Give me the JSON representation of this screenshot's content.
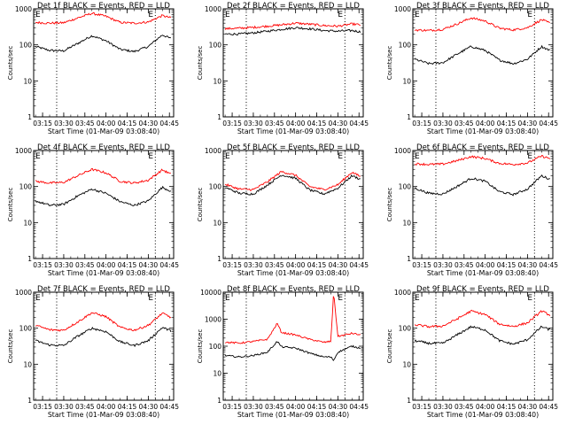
{
  "colors": {
    "events": "#000000",
    "lld": "#ff0000",
    "axis": "#000000"
  },
  "ylabel": "Counts/sec",
  "xlabel": "Start Time (01-Mar-09 03:08:40)",
  "x_ticks": [
    "03:15",
    "03:30",
    "03:45",
    "04:00",
    "04:15",
    "04:30",
    "04:45"
  ],
  "chart_data": [
    {
      "type": "line",
      "title": "Det 1f BLACK = Events, RED = LLD",
      "x_range": [
        "03:08:40",
        "04:48:00"
      ],
      "ylim": [
        1,
        1000
      ],
      "yscale": "log",
      "y_ticks": [
        "1",
        "10",
        "100",
        "1000"
      ],
      "marker": "E",
      "reference_lines": [
        "03:25",
        "04:35"
      ],
      "x": [
        "03:10",
        "03:20",
        "03:30",
        "03:40",
        "03:50",
        "04:00",
        "04:10",
        "04:20",
        "04:30",
        "04:40",
        "04:46"
      ],
      "series": [
        {
          "name": "Events",
          "values": [
            90,
            70,
            68,
            110,
            180,
            130,
            75,
            65,
            90,
            190,
            150
          ]
        },
        {
          "name": "LLD",
          "values": [
            420,
            400,
            410,
            560,
            750,
            620,
            420,
            400,
            430,
            650,
            560
          ]
        }
      ]
    },
    {
      "type": "line",
      "title": "Det 2f BLACK = Events, RED = LLD",
      "x_range": [
        "03:08:40",
        "04:48:00"
      ],
      "ylim": [
        1,
        1000
      ],
      "yscale": "log",
      "y_ticks": [
        "1",
        "10",
        "100",
        "1000"
      ],
      "marker": "E",
      "reference_lines": [
        "03:25",
        "04:35"
      ],
      "x": [
        "03:10",
        "03:20",
        "03:30",
        "03:40",
        "03:50",
        "04:00",
        "04:10",
        "04:20",
        "04:30",
        "04:40",
        "04:46"
      ],
      "series": [
        {
          "name": "Events",
          "values": [
            200,
            200,
            215,
            240,
            270,
            300,
            280,
            250,
            240,
            250,
            230
          ]
        },
        {
          "name": "LLD",
          "values": [
            280,
            290,
            305,
            330,
            360,
            400,
            375,
            345,
            330,
            380,
            360
          ]
        }
      ]
    },
    {
      "type": "line",
      "title": "Det 3f BLACK = Events, RED = LLD",
      "x_range": [
        "03:08:40",
        "04:48:00"
      ],
      "ylim": [
        1,
        1000
      ],
      "yscale": "log",
      "y_ticks": [
        "1",
        "10",
        "100",
        "1000"
      ],
      "marker": "E",
      "reference_lines": [
        "03:25",
        "04:35"
      ],
      "x": [
        "03:10",
        "03:20",
        "03:30",
        "03:40",
        "03:50",
        "04:00",
        "04:10",
        "04:20",
        "04:30",
        "04:40",
        "04:46"
      ],
      "series": [
        {
          "name": "Events",
          "values": [
            40,
            30,
            32,
            55,
            90,
            70,
            38,
            30,
            40,
            90,
            70
          ]
        },
        {
          "name": "LLD",
          "values": [
            260,
            250,
            270,
            380,
            560,
            460,
            290,
            260,
            300,
            500,
            400
          ]
        }
      ]
    },
    {
      "type": "line",
      "title": "Det 4f BLACK = Events, RED = LLD",
      "x_range": [
        "03:08:40",
        "04:48:00"
      ],
      "ylim": [
        1,
        1000
      ],
      "yscale": "log",
      "y_ticks": [
        "1",
        "10",
        "100",
        "1000"
      ],
      "marker": "E",
      "reference_lines": [
        "03:25",
        "04:35"
      ],
      "x": [
        "03:10",
        "03:20",
        "03:30",
        "03:40",
        "03:50",
        "04:00",
        "04:10",
        "04:20",
        "04:30",
        "04:40",
        "04:46"
      ],
      "series": [
        {
          "name": "Events",
          "values": [
            40,
            30,
            32,
            55,
            85,
            65,
            38,
            30,
            40,
            95,
            75
          ]
        },
        {
          "name": "LLD",
          "values": [
            140,
            125,
            130,
            200,
            300,
            240,
            140,
            125,
            150,
            290,
            220
          ]
        }
      ]
    },
    {
      "type": "line",
      "title": "Det 5f BLACK = Events, RED = LLD",
      "x_range": [
        "03:08:40",
        "04:48:00"
      ],
      "ylim": [
        1,
        1000
      ],
      "yscale": "log",
      "y_ticks": [
        "1",
        "10",
        "100",
        "1000"
      ],
      "marker": "E",
      "reference_lines": [
        "03:25",
        "04:35"
      ],
      "x": [
        "03:10",
        "03:20",
        "03:30",
        "03:40",
        "03:50",
        "04:00",
        "04:10",
        "04:20",
        "04:30",
        "04:40",
        "04:46"
      ],
      "series": [
        {
          "name": "Events",
          "values": [
            95,
            65,
            62,
            110,
            210,
            170,
            80,
            62,
            90,
            200,
            160
          ]
        },
        {
          "name": "LLD",
          "values": [
            115,
            85,
            82,
            135,
            260,
            205,
            100,
            82,
            112,
            250,
            190
          ]
        }
      ]
    },
    {
      "type": "line",
      "title": "Det 6f BLACK = Events, RED = LLD",
      "x_range": [
        "03:08:40",
        "04:48:00"
      ],
      "ylim": [
        1,
        1000
      ],
      "yscale": "log",
      "y_ticks": [
        "1",
        "10",
        "100",
        "1000"
      ],
      "marker": "E",
      "reference_lines": [
        "03:25",
        "04:35"
      ],
      "x": [
        "03:10",
        "03:20",
        "03:30",
        "03:40",
        "03:50",
        "04:00",
        "04:10",
        "04:20",
        "04:30",
        "04:40",
        "04:46"
      ],
      "series": [
        {
          "name": "Events",
          "values": [
            90,
            65,
            62,
            100,
            170,
            140,
            72,
            60,
            85,
            200,
            160
          ]
        },
        {
          "name": "LLD",
          "values": [
            430,
            410,
            420,
            520,
            680,
            600,
            440,
            410,
            450,
            700,
            600
          ]
        }
      ]
    },
    {
      "type": "line",
      "title": "Det 7f BLACK = Events, RED = LLD",
      "x_range": [
        "03:08:40",
        "04:48:00"
      ],
      "ylim": [
        1,
        1000
      ],
      "yscale": "log",
      "y_ticks": [
        "1",
        "10",
        "100",
        "1000"
      ],
      "marker": "E",
      "reference_lines": [
        "03:25",
        "04:35"
      ],
      "x": [
        "03:10",
        "03:20",
        "03:30",
        "03:40",
        "03:50",
        "04:00",
        "04:10",
        "04:20",
        "04:30",
        "04:40",
        "04:46"
      ],
      "series": [
        {
          "name": "Events",
          "values": [
            45,
            34,
            33,
            60,
            100,
            80,
            42,
            33,
            45,
            105,
            85
          ]
        },
        {
          "name": "LLD",
          "values": [
            120,
            90,
            88,
            150,
            270,
            210,
            105,
            88,
            120,
            260,
            200
          ]
        }
      ]
    },
    {
      "type": "line",
      "title": "Det 8f BLACK = Events, RED = LLD",
      "x_range": [
        "03:08:40",
        "04:48:00"
      ],
      "ylim": [
        1,
        10000
      ],
      "yscale": "log",
      "y_ticks": [
        "1",
        "10",
        "100",
        "1000",
        "10000"
      ],
      "marker": "E",
      "reference_lines": [
        "03:25",
        "04:35"
      ],
      "x": [
        "03:10",
        "03:20",
        "03:30",
        "03:40",
        "03:47",
        "03:50",
        "04:00",
        "04:10",
        "04:20",
        "04:25",
        "04:27",
        "04:30",
        "04:40",
        "04:46"
      ],
      "series": [
        {
          "name": "Events",
          "values": [
            45,
            40,
            45,
            60,
            150,
            95,
            85,
            55,
            40,
            40,
            30,
            60,
            100,
            85
          ]
        },
        {
          "name": "LLD",
          "values": [
            140,
            130,
            150,
            180,
            700,
            320,
            260,
            180,
            140,
            150,
            10000,
            230,
            300,
            260
          ]
        }
      ]
    },
    {
      "type": "line",
      "title": "Det 9f BLACK = Events, RED = LLD",
      "x_range": [
        "03:08:40",
        "04:48:00"
      ],
      "ylim": [
        1,
        1000
      ],
      "yscale": "log",
      "y_ticks": [
        "1",
        "10",
        "100",
        "1000"
      ],
      "marker": "E",
      "reference_lines": [
        "03:25",
        "04:35"
      ],
      "x": [
        "03:10",
        "03:20",
        "03:30",
        "03:40",
        "03:50",
        "04:00",
        "04:10",
        "04:20",
        "04:30",
        "04:40",
        "04:46"
      ],
      "series": [
        {
          "name": "Events",
          "values": [
            45,
            38,
            38,
            65,
            110,
            90,
            45,
            36,
            48,
            110,
            90
          ]
        },
        {
          "name": "LLD",
          "values": [
            125,
            110,
            115,
            180,
            300,
            240,
            130,
            112,
            140,
            300,
            230
          ]
        }
      ]
    }
  ]
}
